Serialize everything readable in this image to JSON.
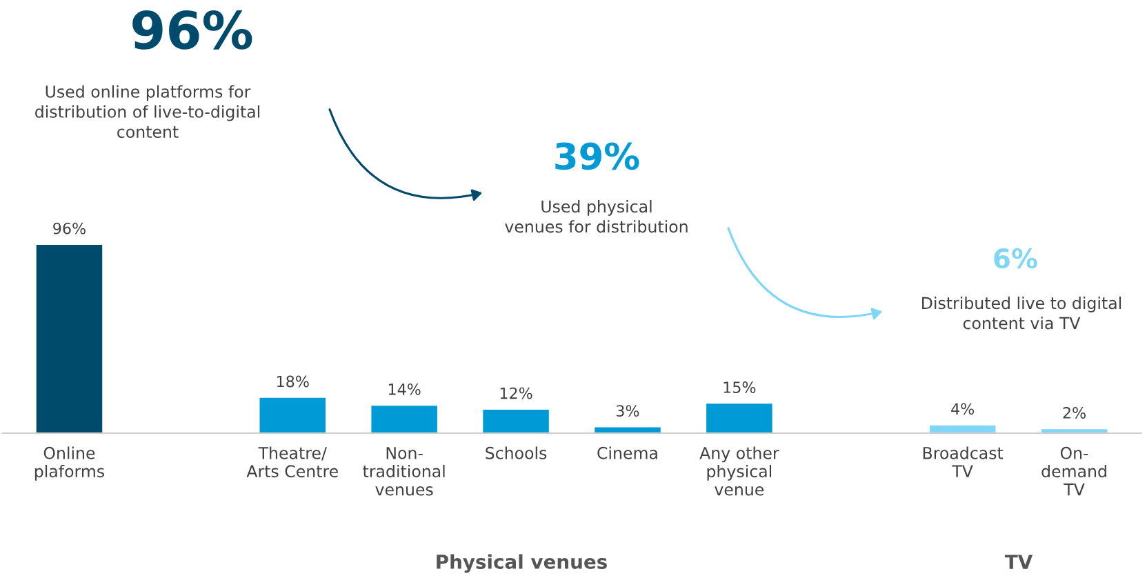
{
  "chart_data": {
    "type": "bar",
    "categories": [
      "Online\nplaforms",
      null,
      "Theatre/\nArts Centre",
      "Non-\ntraditional\nvenues",
      "Schools",
      "Cinema",
      "Any other\nphysical\nvenue",
      null,
      "Broadcast\nTV",
      "On-\ndemand\nTV"
    ],
    "values": [
      96,
      null,
      18,
      14,
      12,
      3,
      15,
      null,
      4,
      2
    ],
    "value_labels": [
      "96%",
      null,
      "18%",
      "14%",
      "12%",
      "3%",
      "15%",
      null,
      "4%",
      "2%"
    ],
    "colors": [
      "#004a6b",
      null,
      "#009bd6",
      "#009bd6",
      "#009bd6",
      "#009bd6",
      "#009bd6",
      null,
      "#7fd6f7",
      "#7fd6f7"
    ],
    "tick_labels": "x",
    "grid": false,
    "legend": false,
    "annotations": [
      "96%",
      "Used online platforms for\ndistribution of live-to-digital\ncontent",
      "39%",
      "Used physical\nvenues for distribution",
      "6%",
      "Distributed live to digital\ncontent via TV",
      "Physical venues",
      "TV"
    ]
  }
}
